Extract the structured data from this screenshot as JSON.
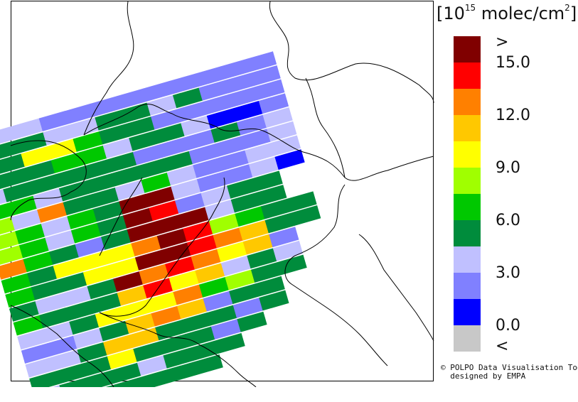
{
  "legend": {
    "title_base": "[10",
    "title_exp": "15",
    "title_unit": " molec/cm",
    "title_unit_exp": "2",
    "title_close": "]",
    "swatches": [
      "#800000",
      "#ff0000",
      "#ff8000",
      "#ffc800",
      "#ffff00",
      "#a0ff00",
      "#00c800",
      "#008c3c",
      "#c0c0ff",
      "#8080ff",
      "#0000ff",
      "#c8c8c8"
    ],
    "ticks": [
      ">",
      "15.0",
      "12.0",
      "9.0",
      "6.0",
      "3.0",
      "0.0",
      "<"
    ]
  },
  "credit": {
    "line1": "© POLPO Data Visualisation Tool",
    "line2": "designed by EMPA"
  },
  "map": {
    "colors": {
      "darkred": "#800000",
      "red": "#ff0000",
      "orange": "#ff8000",
      "amber": "#ffc800",
      "yellow": "#ffff00",
      "lime": "#a0ff00",
      "green": "#00c800",
      "darkgreen": "#008c3c",
      "lavender": "#c0c0ff",
      "periwinkle": "#8080ff",
      "blue": "#0000ff"
    },
    "rows": [
      "L L L P P P P P P P P P",
      "D D D L L D D L D P P P",
      "D D Y Y G D D P P P P P",
      "D D D G G L D D L B B P",
      "L D D D D D P P P D P L",
      "G G L D D D D D P P P L",
      "LM L O D D L G L P P L L",
      "LM G L G D DR DR L P P L BL",
      "LM G L G D DR R P L D D",
      "O G D P D DR DR DR L D D",
      "G D Y Y Y O DR R LM G D D",
      "G D D Y Y DR DR R O A D D",
      "D L L D DR O R O Y A P",
      "G D D D A R Y A L D L",
      "L L D Y Y Y O G LM D D",
      "P P L D A O A P D D",
      "L L D A A D D D P D",
      "D D D Y D D D P D",
      "L D D D L D D D",
      "L D D D D D D"
    ]
  }
}
